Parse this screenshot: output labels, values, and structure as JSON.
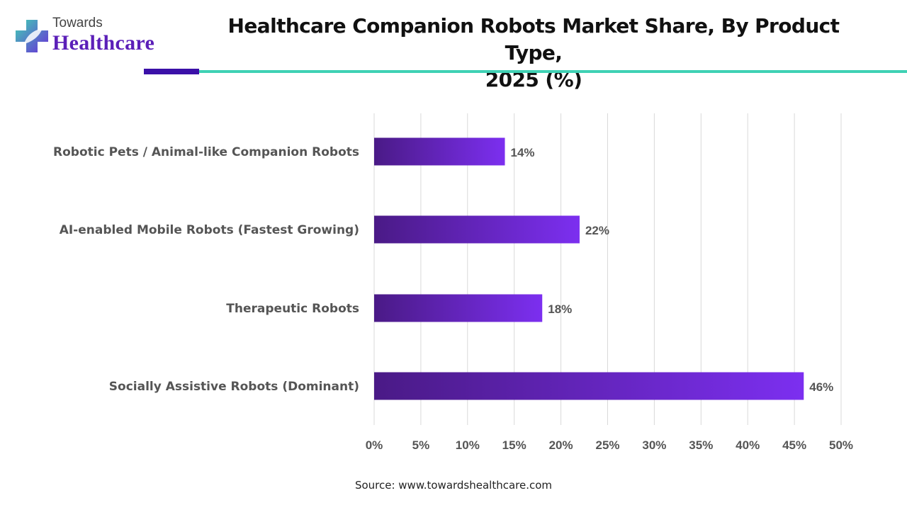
{
  "header": {
    "logo_top": "Towards",
    "logo_main": "Healthcare",
    "title_line1": "Healthcare Companion Robots Market Share, By Product Type,",
    "title_line2": "2025 (%)"
  },
  "colors": {
    "bar_start": "#4a1a86",
    "bar_end": "#7c2ff0",
    "accent_dark": "#3b10a8",
    "accent_teal": "#3fd1b4",
    "grid": "#d9d9d9",
    "label_text": "#555555"
  },
  "chart_data": {
    "type": "bar",
    "orientation": "horizontal",
    "categories": [
      "Robotic Pets / Animal-like Companion Robots",
      "AI-enabled Mobile Robots (Fastest Growing)",
      "Therapeutic Robots",
      "Socially Assistive Robots (Dominant)"
    ],
    "values": [
      14,
      22,
      18,
      46
    ],
    "value_labels": [
      "14%",
      "22%",
      "18%",
      "46%"
    ],
    "xlim": [
      0,
      50
    ],
    "x_ticks": [
      0,
      5,
      10,
      15,
      20,
      25,
      30,
      35,
      40,
      45,
      50
    ],
    "x_tick_labels": [
      "0%",
      "5%",
      "10%",
      "15%",
      "20%",
      "25%",
      "30%",
      "35%",
      "40%",
      "45%",
      "50%"
    ],
    "grid": true,
    "legend": "none"
  },
  "footer": {
    "source": "Source: www.towardshealthcare.com"
  }
}
